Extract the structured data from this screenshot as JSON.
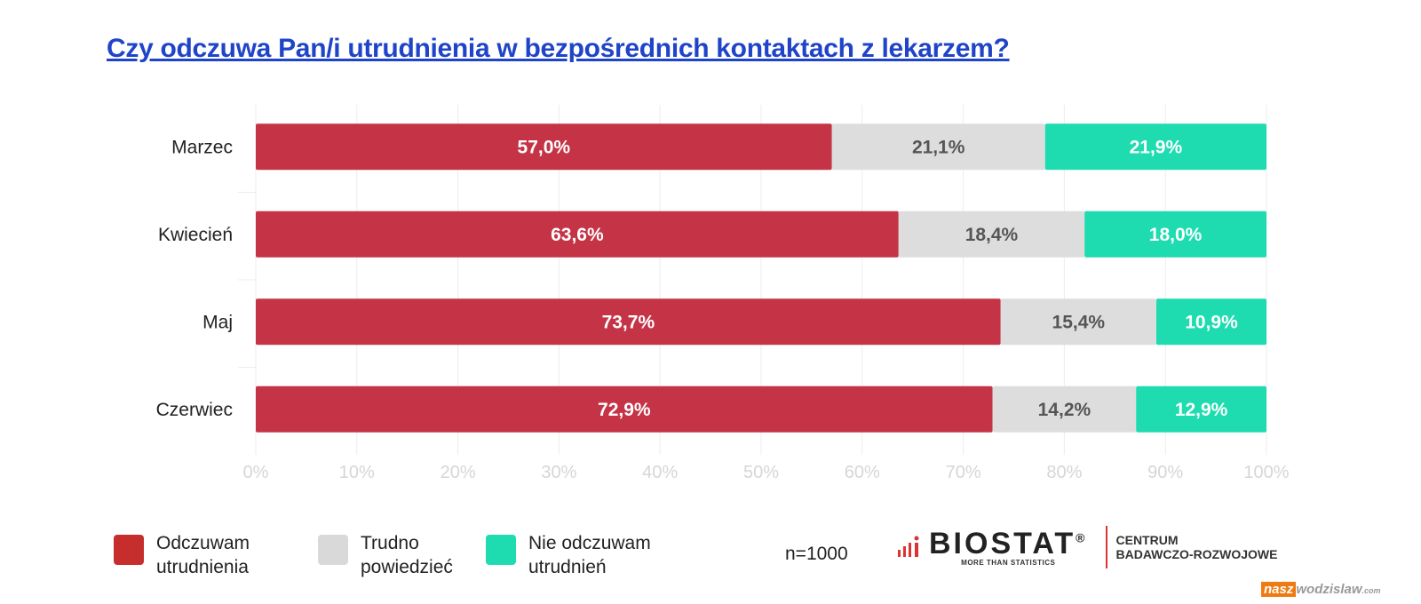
{
  "chart_data": {
    "type": "bar",
    "orientation": "horizontal-stacked-100",
    "title": "Czy odczuwa Pan/i utrudnienia w bezpośrednich kontaktach z lekarzem?",
    "categories": [
      "Marzec",
      "Kwiecień",
      "Maj",
      "Czerwiec"
    ],
    "series": [
      {
        "name": "Odczuwam utrudnienia",
        "color": "#c43346",
        "values": [
          57.0,
          63.6,
          73.7,
          72.9
        ],
        "labels": [
          "57,0%",
          "63,6%",
          "73,7%",
          "72,9%"
        ]
      },
      {
        "name": "Trudno powiedzieć",
        "color": "#dddddd",
        "values": [
          21.1,
          18.4,
          15.4,
          14.2
        ],
        "labels": [
          "21,1%",
          "18,4%",
          "15,4%",
          "14,2%"
        ]
      },
      {
        "name": "Nie odczuwam utrudnień",
        "color": "#1edcb0",
        "values": [
          21.9,
          18.0,
          10.9,
          12.9
        ],
        "labels": [
          "21,9%",
          "18,0%",
          "10,9%",
          "12,9%"
        ]
      }
    ],
    "xlim": [
      0,
      100
    ],
    "xticks": [
      "0%",
      "10%",
      "20%",
      "30%",
      "40%",
      "50%",
      "60%",
      "70%",
      "80%",
      "90%",
      "100%"
    ],
    "grid": true,
    "legend_placement": "bottom-left"
  },
  "legend": [
    {
      "line1": "Odczuwam",
      "line2": "utrudnienia",
      "color": "#c62e2e"
    },
    {
      "line1": "Trudno",
      "line2": "powiedzieć",
      "color": "#d9d9d9"
    },
    {
      "line1": "Nie odczuwam",
      "line2": "utrudnień",
      "color": "#1edcb0"
    }
  ],
  "sample": "n=1000",
  "logo": {
    "name": "BIOSTAT",
    "reg": "®",
    "tagline": "MORE THAN STATISTICS",
    "centrum1": "CENTRUM",
    "centrum2": "BADAWCZO-ROZWOJOWE"
  },
  "watermark": {
    "part1": "nasz",
    "part2": "wodzislaw",
    "part3": ".com"
  }
}
